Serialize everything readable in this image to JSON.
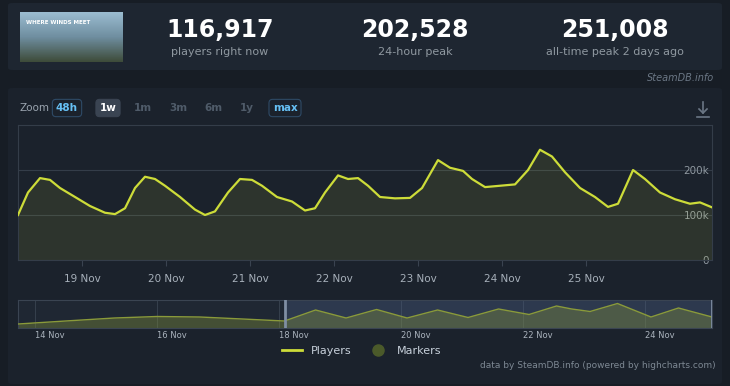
{
  "header": {
    "game_logo": "WHERE WINDS MEET",
    "stats": [
      {
        "value": "116,917",
        "label": "players right now"
      },
      {
        "value": "202,528",
        "label": "24-hour peak"
      },
      {
        "value": "251,008",
        "label": "all-time peak 2 days ago"
      }
    ],
    "watermark": "SteamDB.info"
  },
  "zoom": {
    "label": "Zoom",
    "buttons": [
      "48h",
      "1w",
      "1m",
      "3m",
      "6m",
      "1y",
      "max"
    ],
    "selected": "1w",
    "enabled": [
      "48h",
      "max"
    ]
  },
  "chart_data": {
    "type": "area",
    "grid": true,
    "legend": "bottom",
    "x": [
      18.238,
      18.357,
      18.5,
      18.619,
      18.738,
      18.917,
      19.095,
      19.274,
      19.393,
      19.512,
      19.631,
      19.75,
      19.869,
      19.988,
      20.167,
      20.345,
      20.464,
      20.583,
      20.738,
      20.881,
      21.024,
      21.143,
      21.321,
      21.5,
      21.655,
      21.774,
      21.893,
      22.048,
      22.167,
      22.286,
      22.405,
      22.548,
      22.726,
      22.905,
      23.048,
      23.238,
      23.381,
      23.536,
      23.643,
      23.798,
      23.976,
      24.155,
      24.31,
      24.452,
      24.595,
      24.75,
      24.929,
      25.107,
      25.262,
      25.381,
      25.56,
      25.702,
      25.881,
      26.06,
      26.238,
      26.357,
      26.5
    ],
    "series": [
      {
        "name": "Players",
        "color": "#cddc39",
        "values": [
          100000,
          150000,
          182000,
          178000,
          160000,
          140000,
          120000,
          105000,
          102000,
          115000,
          160000,
          185000,
          180000,
          165000,
          140000,
          112000,
          100000,
          108000,
          150000,
          180000,
          178000,
          165000,
          140000,
          130000,
          110000,
          115000,
          150000,
          188000,
          180000,
          182000,
          165000,
          140000,
          137000,
          138000,
          160000,
          222000,
          205000,
          198000,
          180000,
          162000,
          165000,
          168000,
          200000,
          245000,
          230000,
          195000,
          160000,
          140000,
          118000,
          125000,
          200000,
          180000,
          150000,
          135000,
          125000,
          128000,
          117000
        ]
      }
    ],
    "markers": {
      "name": "Markers",
      "color": "#4b5a2a",
      "marker": "circle"
    },
    "xlim": [
      18.238,
      26.5
    ],
    "xticks": [
      {
        "value": 19,
        "label": "19 Nov"
      },
      {
        "value": 20,
        "label": "20 Nov"
      },
      {
        "value": 21,
        "label": "21 Nov"
      },
      {
        "value": 22,
        "label": "22 Nov"
      },
      {
        "value": 23,
        "label": "23 Nov"
      },
      {
        "value": 24,
        "label": "24 Nov"
      },
      {
        "value": 25,
        "label": "25 Nov"
      }
    ],
    "ylim": [
      0,
      300000
    ],
    "yticks": [
      0,
      {
        "value": 100000,
        "label": "100k"
      },
      {
        "value": 200000,
        "label": "200k"
      }
    ]
  },
  "navigator": {
    "type": "area",
    "color": "#8a9a3a",
    "tick_labels": "x",
    "x": [
      13.72,
      14.5,
      15.3,
      16,
      16.7,
      17.4,
      18.09,
      18.6,
      19.1,
      19.6,
      20.1,
      20.6,
      21.1,
      21.6,
      22.1,
      22.55,
      22.8,
      23.1,
      23.55,
      24.1,
      24.55,
      25.1
    ],
    "values": [
      40000,
      70000,
      100000,
      115000,
      110000,
      90000,
      70000,
      180000,
      100000,
      185000,
      100000,
      180000,
      105000,
      190000,
      135000,
      220000,
      190000,
      165000,
      245000,
      110000,
      200000,
      110000
    ],
    "xlim": [
      13.72,
      25.1
    ],
    "ylim": [
      0,
      280000
    ],
    "selected_range": [
      18.09,
      25.1
    ],
    "xticks": [
      {
        "value": 14,
        "label": "14 Nov"
      },
      {
        "value": 16,
        "label": "16 Nov"
      },
      {
        "value": 18,
        "label": "18 Nov"
      },
      {
        "value": 20,
        "label": "20 Nov"
      },
      {
        "value": 22,
        "label": "22 Nov"
      },
      {
        "value": 24,
        "label": "24 Nov"
      }
    ]
  },
  "footer": "data by SteamDB.info (powered by highcharts.com)"
}
